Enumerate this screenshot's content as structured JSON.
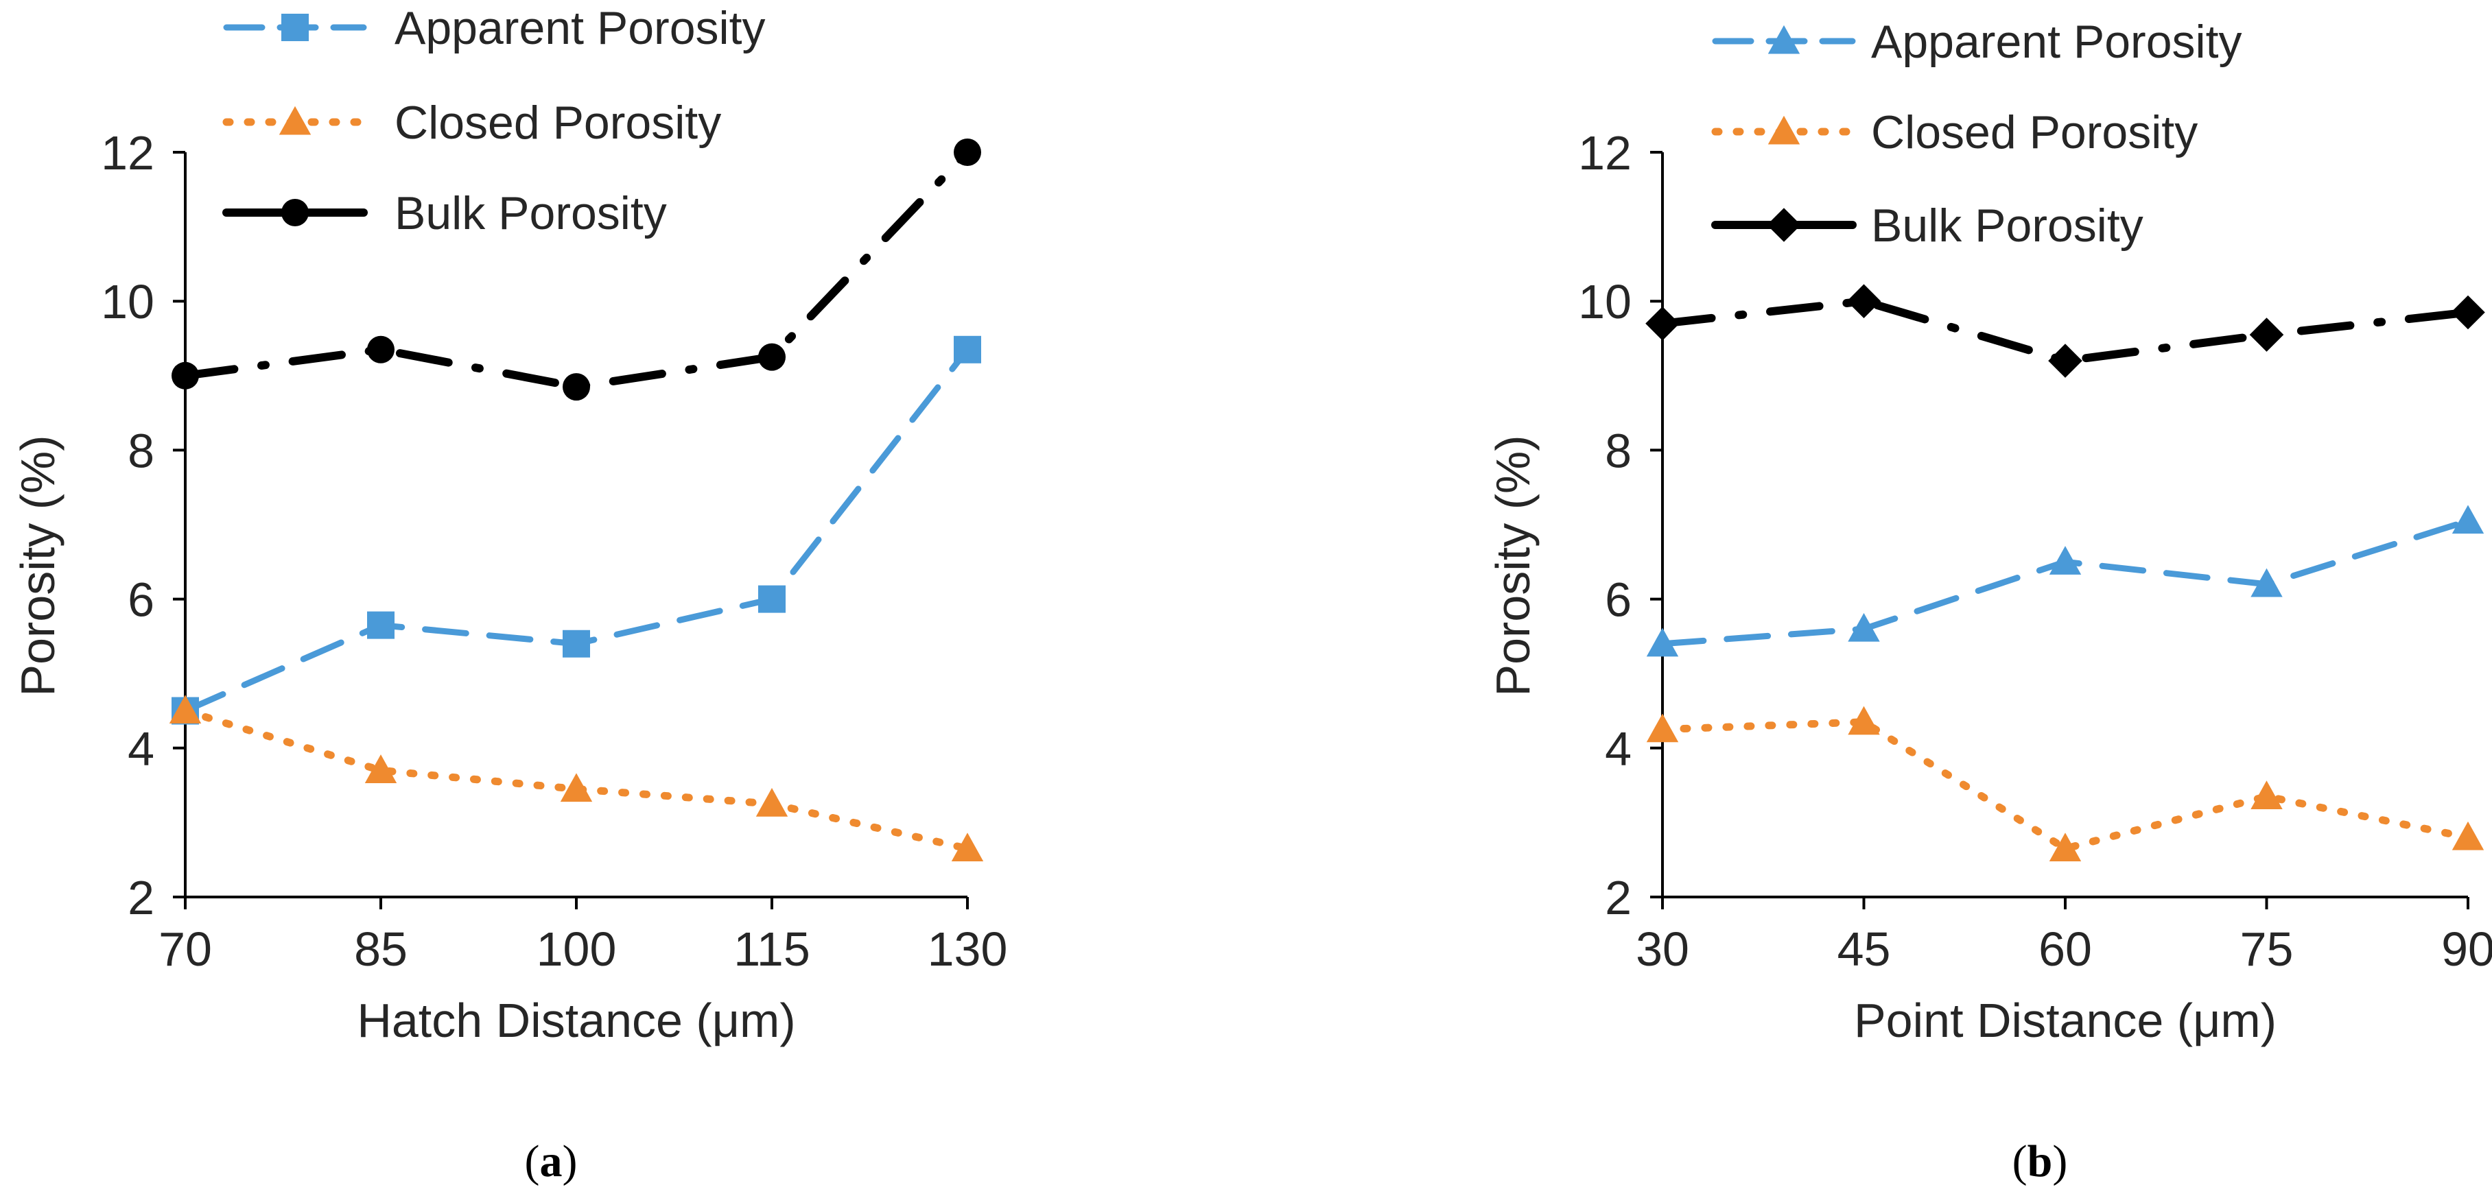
{
  "chart_data": [
    {
      "type": "line",
      "panel_label": "a",
      "xlabel": "Hatch Distance (μm)",
      "ylabel": "Porosity (%)",
      "categories": [
        "70",
        "85",
        "100",
        "115",
        "130"
      ],
      "x": [
        70,
        85,
        100,
        115,
        130
      ],
      "xlim": [
        70,
        130
      ],
      "ylim": [
        2,
        12
      ],
      "yticks": [
        "2",
        "4",
        "6",
        "8",
        "10",
        "12"
      ],
      "grid": false,
      "legend_position": "top",
      "series": [
        {
          "name": "Apparent Porosity",
          "values": [
            4.5,
            5.65,
            5.4,
            6.0,
            9.35
          ],
          "color": "#4a9ad8",
          "marker": "square",
          "dash": "dash"
        },
        {
          "name": "Closed Porosity",
          "values": [
            4.5,
            3.7,
            3.45,
            3.25,
            2.65
          ],
          "color": "#ef8a2f",
          "marker": "triangle",
          "dash": "dot"
        },
        {
          "name": "Bulk Porosity",
          "values": [
            9.0,
            9.35,
            8.85,
            9.25,
            12.0
          ],
          "color": "#000000",
          "marker": "circle",
          "dash": "dashdot"
        }
      ]
    },
    {
      "type": "line",
      "panel_label": "b",
      "xlabel": "Point Distance (μm)",
      "ylabel": "Porosity (%)",
      "categories": [
        "30",
        "45",
        "60",
        "75",
        "90"
      ],
      "x": [
        30,
        45,
        60,
        75,
        90
      ],
      "xlim": [
        30,
        90
      ],
      "ylim": [
        2,
        12
      ],
      "yticks": [
        "2",
        "4",
        "6",
        "8",
        "10",
        "12"
      ],
      "grid": false,
      "legend_position": "top",
      "series": [
        {
          "name": "Apparent Porosity",
          "values": [
            5.4,
            5.6,
            6.5,
            6.2,
            7.05
          ],
          "color": "#4a9ad8",
          "marker": "triangle",
          "dash": "dash"
        },
        {
          "name": "Closed Porosity",
          "values": [
            4.25,
            4.35,
            2.65,
            3.35,
            2.8
          ],
          "color": "#ef8a2f",
          "marker": "triangle",
          "dash": "dot"
        },
        {
          "name": "Bulk Porosity",
          "values": [
            9.7,
            10.0,
            9.2,
            9.55,
            9.85
          ],
          "color": "#000000",
          "marker": "diamond",
          "dash": "dashdot"
        }
      ]
    }
  ]
}
